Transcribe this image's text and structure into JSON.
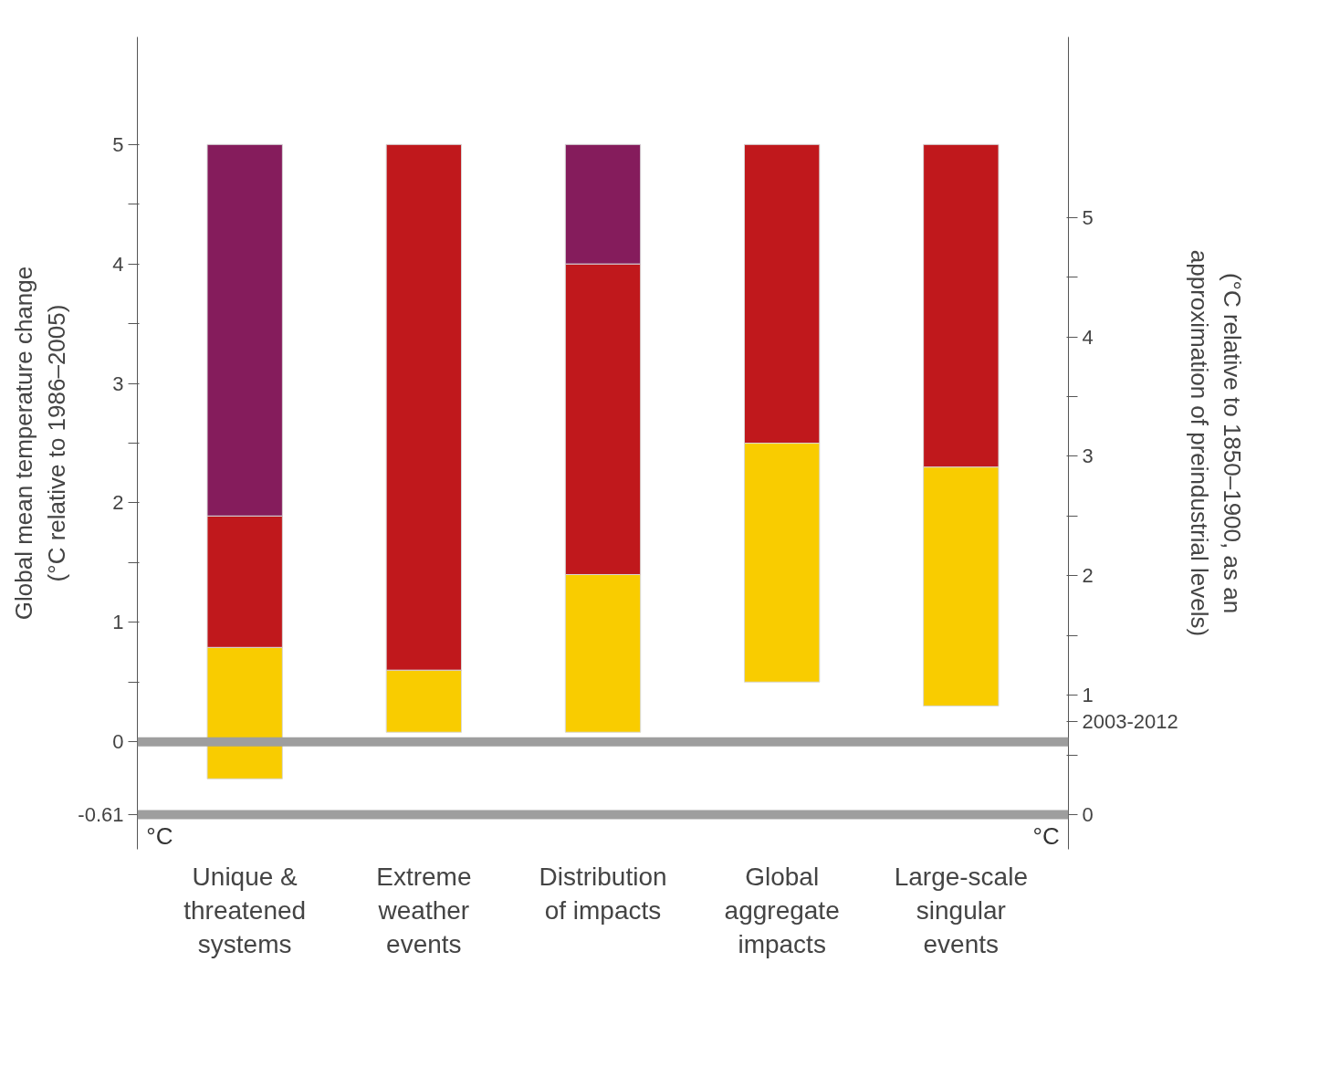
{
  "chart_data": {
    "type": "bar",
    "ylabel": "Global mean temperature change\n(°C relative to 1986–2005)",
    "y2label": "(°C relative to 1850–1900, as an\napproximation of preindustrial levels)",
    "categories": [
      "Unique &\nthreatened\nsystems",
      "Extreme\nweather\nevents",
      "Distribution\nof impacts",
      "Global\naggregate\nimpacts",
      "Large-scale\nsingular\nevents"
    ],
    "series": [
      {
        "color": "#f9cc00",
        "base": [
          -0.31,
          0.08,
          0.08,
          0.5,
          0.3
        ],
        "values": [
          1.1,
          0.52,
          1.32,
          2.0,
          2.0
        ]
      },
      {
        "color": "#c0181c",
        "base": [
          0.79,
          0.6,
          1.4,
          2.5,
          2.3
        ],
        "values": [
          1.1,
          4.4,
          2.6,
          2.5,
          2.7
        ]
      },
      {
        "color": "#851c5c",
        "base": [
          1.89,
          null,
          4.0,
          null,
          null
        ],
        "values": [
          3.11,
          null,
          1.0,
          null,
          null
        ]
      }
    ],
    "ylim": [
      -0.9,
      5.9
    ],
    "yticks": [
      {
        "value": -0.61,
        "label": "-0.61"
      },
      0,
      {
        "value": 0.5,
        "label": null
      },
      1,
      {
        "value": 1.5,
        "label": null
      },
      2,
      {
        "value": 2.5,
        "label": null
      },
      3,
      {
        "value": 3.5,
        "label": null
      },
      4,
      {
        "value": 4.5,
        "label": null
      },
      5
    ],
    "y2lim": [
      -0.29,
      6.51
    ],
    "y2ticks": [
      0,
      {
        "value": 0.5,
        "label": null
      },
      {
        "value": 0.78,
        "label": "2003-2012"
      },
      1,
      {
        "value": 1.5,
        "label": null
      },
      2,
      {
        "value": 2.5,
        "label": null
      },
      3,
      {
        "value": 3.5,
        "label": null
      },
      4,
      {
        "value": 4.5,
        "label": null
      },
      5
    ],
    "ref_lines": [
      {
        "axis": "y",
        "value": 0,
        "color": "#9e9e9e"
      },
      {
        "axis": "y",
        "value": -0.61,
        "color": "#9e9e9e"
      }
    ],
    "annotations": [
      "°C",
      "°C"
    ]
  }
}
